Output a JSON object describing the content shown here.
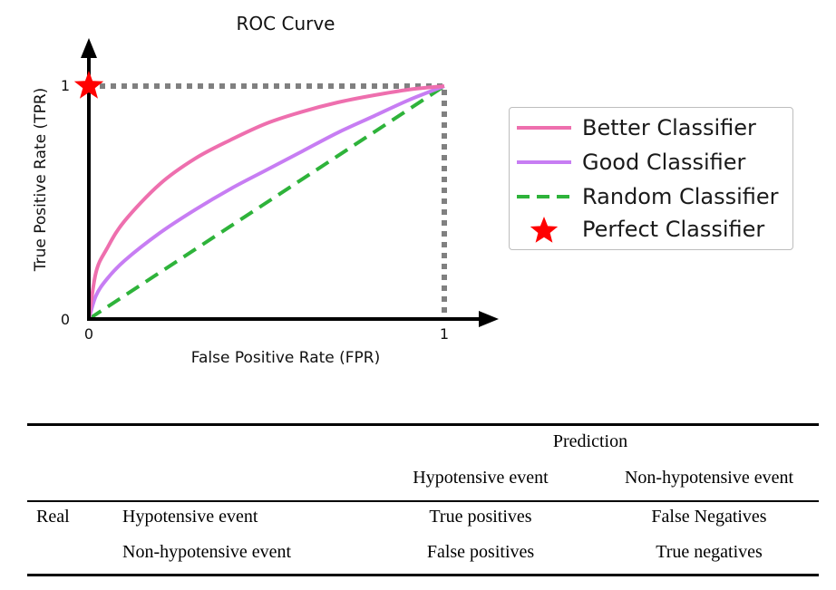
{
  "chart_data": {
    "type": "line",
    "title": "ROC Curve",
    "xlabel": "False Positive Rate (FPR)",
    "ylabel": "True Positive Rate (TPR)",
    "xlim": [
      0,
      1
    ],
    "ylim": [
      0,
      1
    ],
    "x_ticks": [
      "0",
      "1"
    ],
    "y_ticks": [
      "0",
      "1"
    ],
    "grid": false,
    "legend_position": "right",
    "series": [
      {
        "name": "Better Classifier",
        "color": "#ee6fae",
        "style": "solid",
        "x": [
          0,
          0.02,
          0.05,
          0.1,
          0.2,
          0.3,
          0.4,
          0.5,
          0.6,
          0.7,
          0.8,
          0.9,
          1.0
        ],
        "y": [
          0,
          0.2,
          0.3,
          0.42,
          0.58,
          0.69,
          0.77,
          0.84,
          0.89,
          0.93,
          0.96,
          0.985,
          1.0
        ]
      },
      {
        "name": "Good Classifier",
        "color": "#c77df3",
        "style": "solid",
        "x": [
          0,
          0.02,
          0.05,
          0.1,
          0.2,
          0.3,
          0.4,
          0.5,
          0.6,
          0.7,
          0.8,
          0.9,
          1.0
        ],
        "y": [
          0,
          0.1,
          0.17,
          0.25,
          0.37,
          0.47,
          0.56,
          0.64,
          0.72,
          0.8,
          0.87,
          0.94,
          1.0
        ]
      },
      {
        "name": "Random Classifier",
        "color": "#2eb33a",
        "style": "dashed",
        "x": [
          0,
          1
        ],
        "y": [
          0,
          1
        ]
      },
      {
        "name": "Perfect Classifier",
        "color": "#ff0000",
        "style": "marker-star",
        "x": [
          0
        ],
        "y": [
          1
        ]
      }
    ],
    "reference_lines": {
      "color": "#808080",
      "style": "dotted",
      "points": [
        [
          0,
          1
        ],
        [
          1,
          1
        ],
        [
          1,
          0
        ]
      ]
    }
  },
  "table": {
    "header_group": "Prediction",
    "pred_cols": [
      "Hypotensive event",
      "Non-hypotensive event"
    ],
    "row_group": "Real",
    "rows": [
      {
        "label": "Hypotensive event",
        "cells": [
          "True positives",
          "False Negatives"
        ]
      },
      {
        "label": "Non-hypotensive event",
        "cells": [
          "False positives",
          "True negatives"
        ]
      }
    ]
  }
}
